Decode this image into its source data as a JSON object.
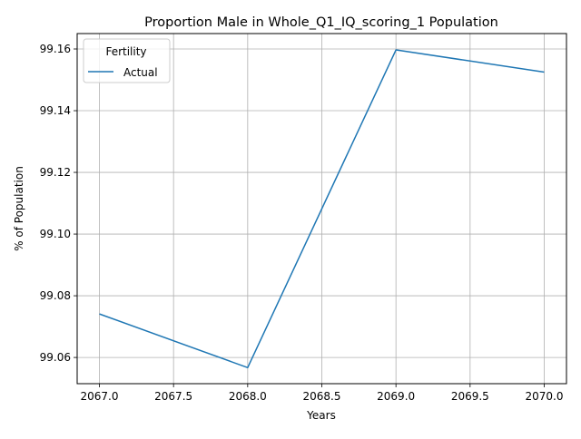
{
  "chart_data": {
    "type": "line",
    "title": "Proportion Male in Whole_Q1_IQ_scoring_1 Population",
    "xlabel": "Years",
    "ylabel": "% of Population",
    "xlim": [
      2066.85,
      2070.15
    ],
    "ylim": [
      99.0515,
      99.165
    ],
    "xticks": [
      2067.0,
      2067.5,
      2068.0,
      2068.5,
      2069.0,
      2069.5,
      2070.0
    ],
    "xtick_labels": [
      "2067.0",
      "2067.5",
      "2068.0",
      "2068.5",
      "2069.0",
      "2069.5",
      "2070.0"
    ],
    "yticks": [
      99.06,
      99.08,
      99.1,
      99.12,
      99.14,
      99.16
    ],
    "ytick_labels": [
      "99.06",
      "99.08",
      "99.10",
      "99.12",
      "99.14",
      "99.16"
    ],
    "grid": true,
    "legend": {
      "title": "Fertility",
      "placement": "top-left"
    },
    "series": [
      {
        "name": "Actual",
        "color": "#1f77b4",
        "x": [
          2067,
          2068,
          2069,
          2070
        ],
        "y": [
          99.0741,
          99.0567,
          99.1597,
          99.1525
        ]
      }
    ]
  }
}
